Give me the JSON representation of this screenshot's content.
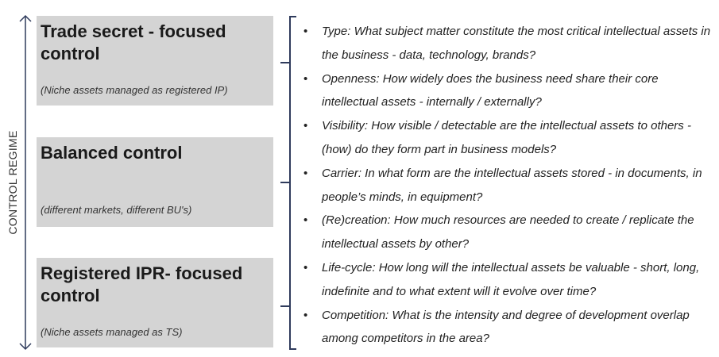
{
  "axis_label": "CONTROL REGIME",
  "boxes": [
    {
      "title": "Trade secret - focused control",
      "subtitle": "(Niche assets managed as registered IP)"
    },
    {
      "title": "Balanced control",
      "subtitle": "(different markets, different BU's)"
    },
    {
      "title": "Registered IPR- focused control",
      "subtitle": "(Niche assets managed as TS)"
    }
  ],
  "criteria": [
    "Type: What subject matter constitute the most critical intellectual assets in the business - data, technology, brands?",
    "Openness: How widely does the business need share their core intellectual assets - internally / externally?",
    "Visibility: How visible / detectable are the intellectual assets to others - (how) do they form part in business models?",
    "Carrier: In what form are the intellectual assets stored - in documents, in people’s minds, in equipment?",
    "(Re)creation: How much resources are needed to create / replicate the intellectual assets by other?",
    "Life-cycle: How long will the intellectual assets be valuable - short, long, indefinite and to what extent will it evolve over time?",
    "Competition: What is the intensity and degree of development overlap among competitors in the area?"
  ],
  "colors": {
    "box": "#d4d4d4",
    "lines": "#2f3b5c"
  }
}
